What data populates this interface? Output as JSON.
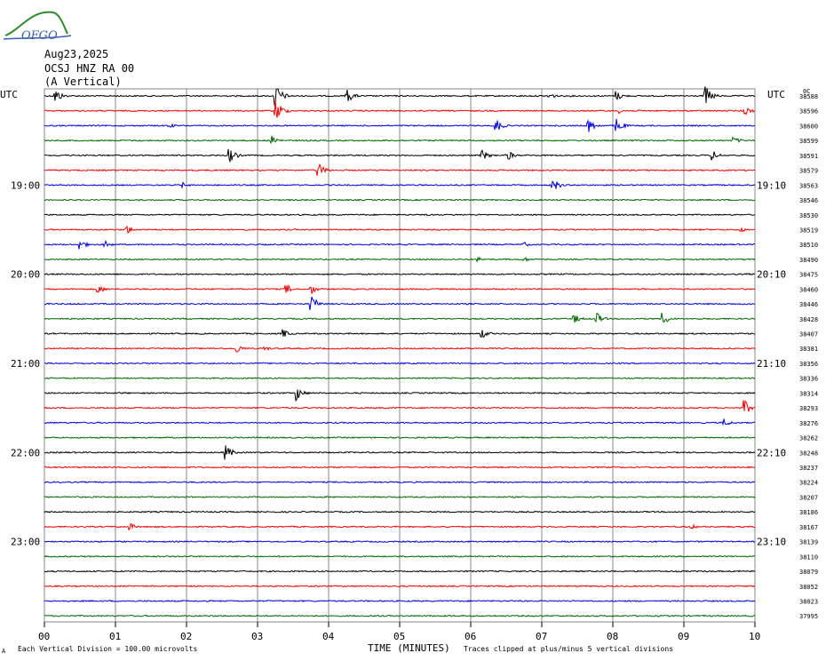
{
  "header": {
    "date": "Aug23,2025",
    "station": "OCSJ HNZ RA 00",
    "component": "(A Vertical)",
    "logo_text": "OFGO"
  },
  "labels": {
    "utc_left": "UTC",
    "utc_right": "UTC",
    "right_top_mark": "0C",
    "bottom_left_mark": "A",
    "scale_note": "Each Vertical Division = 100.00 microvolts",
    "xaxis_title": "TIME (MINUTES)",
    "clip_note": "Traces clipped at plus/minus 5 vertical divisions"
  },
  "colors": {
    "black": "#000000",
    "red": "#ee0000",
    "blue": "#0000dd",
    "green": "#006600",
    "grid": "#888888"
  },
  "chart_data": {
    "type": "line",
    "title": "",
    "xlabel": "TIME (MINUTES)",
    "xlim": [
      0,
      10
    ],
    "x_ticks": [
      "00",
      "01",
      "02",
      "03",
      "04",
      "05",
      "06",
      "07",
      "08",
      "09",
      "10"
    ],
    "trace_colors_cycle": [
      "black",
      "red",
      "blue",
      "green"
    ],
    "hour_labels_left": [
      "19:00",
      "20:00",
      "21:00",
      "22:00",
      "23:00"
    ],
    "hour_labels_right": [
      "19:10",
      "20:10",
      "21:10",
      "22:10",
      "23:10"
    ],
    "hour_label_rows": [
      6,
      12,
      18,
      24,
      30
    ],
    "trace_offsets": [
      "38588",
      "38596",
      "38600",
      "38599",
      "38591",
      "38579",
      "38563",
      "38546",
      "38530",
      "38519",
      "38510",
      "38490",
      "38475",
      "38460",
      "38446",
      "38428",
      "38407",
      "38381",
      "38356",
      "38336",
      "38314",
      "38293",
      "38276",
      "38262",
      "38248",
      "38237",
      "38224",
      "38207",
      "38186",
      "38167",
      "38139",
      "38110",
      "38079",
      "38052",
      "38023",
      "37995"
    ],
    "events": [
      {
        "row": 0,
        "minute": 0.15,
        "amp": 3
      },
      {
        "row": 0,
        "minute": 3.25,
        "amp": 5
      },
      {
        "row": 0,
        "minute": 4.25,
        "amp": 3
      },
      {
        "row": 0,
        "minute": 7.1,
        "amp": 1.5
      },
      {
        "row": 0,
        "minute": 8.05,
        "amp": 2
      },
      {
        "row": 0,
        "minute": 9.3,
        "amp": 4
      },
      {
        "row": 1,
        "minute": 3.25,
        "amp": 5
      },
      {
        "row": 1,
        "minute": 8.1,
        "amp": 1
      },
      {
        "row": 1,
        "minute": 9.85,
        "amp": 2
      },
      {
        "row": 2,
        "minute": 1.75,
        "amp": 1
      },
      {
        "row": 2,
        "minute": 6.35,
        "amp": 3
      },
      {
        "row": 2,
        "minute": 7.65,
        "amp": 3
      },
      {
        "row": 2,
        "minute": 8.05,
        "amp": 3
      },
      {
        "row": 3,
        "minute": 3.2,
        "amp": 2
      },
      {
        "row": 3,
        "minute": 9.7,
        "amp": 1.5
      },
      {
        "row": 4,
        "minute": 2.6,
        "amp": 3
      },
      {
        "row": 4,
        "minute": 6.15,
        "amp": 2.5
      },
      {
        "row": 4,
        "minute": 6.5,
        "amp": 2.5
      },
      {
        "row": 4,
        "minute": 9.4,
        "amp": 2
      },
      {
        "row": 5,
        "minute": 3.85,
        "amp": 3
      },
      {
        "row": 6,
        "minute": 1.95,
        "amp": 1
      },
      {
        "row": 6,
        "minute": 7.15,
        "amp": 3
      },
      {
        "row": 8,
        "minute": 5.4,
        "amp": 0.5
      },
      {
        "row": 9,
        "minute": 1.15,
        "amp": 2
      },
      {
        "row": 9,
        "minute": 9.8,
        "amp": 1
      },
      {
        "row": 10,
        "minute": 0.5,
        "amp": 2
      },
      {
        "row": 10,
        "minute": 0.85,
        "amp": 1.5
      },
      {
        "row": 10,
        "minute": 6.75,
        "amp": 1
      },
      {
        "row": 11,
        "minute": 6.1,
        "amp": 1
      },
      {
        "row": 11,
        "minute": 6.75,
        "amp": 1
      },
      {
        "row": 13,
        "minute": 0.75,
        "amp": 2
      },
      {
        "row": 13,
        "minute": 3.4,
        "amp": 2
      },
      {
        "row": 13,
        "minute": 3.75,
        "amp": 2
      },
      {
        "row": 14,
        "minute": 3.75,
        "amp": 3.5
      },
      {
        "row": 15,
        "minute": 7.45,
        "amp": 2
      },
      {
        "row": 15,
        "minute": 7.75,
        "amp": 3
      },
      {
        "row": 15,
        "minute": 8.7,
        "amp": 2.5
      },
      {
        "row": 16,
        "minute": 3.35,
        "amp": 2
      },
      {
        "row": 16,
        "minute": 6.15,
        "amp": 2
      },
      {
        "row": 17,
        "minute": 2.7,
        "amp": 2
      },
      {
        "row": 17,
        "minute": 3.1,
        "amp": 1
      },
      {
        "row": 20,
        "minute": 3.55,
        "amp": 3
      },
      {
        "row": 21,
        "minute": 9.85,
        "amp": 3
      },
      {
        "row": 22,
        "minute": 9.55,
        "amp": 2
      },
      {
        "row": 24,
        "minute": 2.55,
        "amp": 3
      },
      {
        "row": 29,
        "minute": 1.2,
        "amp": 1.5
      },
      {
        "row": 29,
        "minute": 9.1,
        "amp": 1
      }
    ]
  }
}
